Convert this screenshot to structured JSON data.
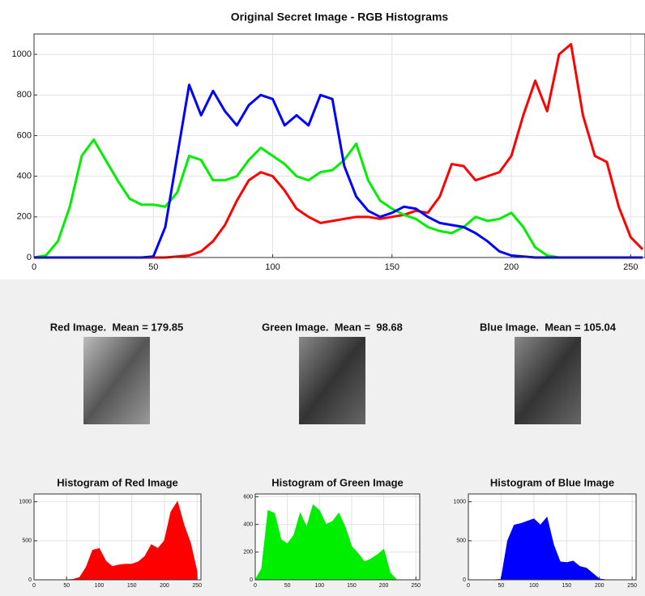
{
  "chart_data": [
    {
      "type": "line",
      "title": "Original Secret Image - RGB Histograms",
      "x": [
        0,
        5,
        10,
        15,
        20,
        25,
        30,
        35,
        40,
        45,
        50,
        55,
        60,
        65,
        70,
        75,
        80,
        85,
        90,
        95,
        100,
        105,
        110,
        115,
        120,
        125,
        130,
        135,
        140,
        145,
        150,
        155,
        160,
        165,
        170,
        175,
        180,
        185,
        190,
        195,
        200,
        205,
        210,
        215,
        220,
        225,
        230,
        235,
        240,
        245,
        250,
        255
      ],
      "series": [
        {
          "color": "#ff0000",
          "values": [
            0,
            0,
            0,
            0,
            0,
            0,
            0,
            0,
            0,
            0,
            0,
            0,
            5,
            10,
            30,
            80,
            160,
            280,
            380,
            420,
            400,
            330,
            240,
            200,
            170,
            180,
            190,
            200,
            200,
            190,
            200,
            210,
            230,
            220,
            300,
            460,
            450,
            380,
            400,
            420,
            500,
            700,
            870,
            720,
            1000,
            1050,
            700,
            500,
            470,
            250,
            100,
            40
          ]
        },
        {
          "color": "#00ee00",
          "values": [
            0,
            10,
            80,
            250,
            500,
            580,
            480,
            380,
            290,
            260,
            260,
            250,
            320,
            500,
            480,
            380,
            380,
            400,
            480,
            540,
            500,
            460,
            400,
            380,
            420,
            430,
            480,
            560,
            380,
            280,
            240,
            210,
            190,
            150,
            130,
            120,
            150,
            200,
            180,
            190,
            220,
            150,
            50,
            10,
            0,
            0,
            0,
            0,
            0,
            0,
            0,
            0
          ]
        },
        {
          "color": "#0000ff",
          "values": [
            0,
            0,
            0,
            0,
            0,
            0,
            0,
            0,
            0,
            0,
            5,
            150,
            500,
            850,
            700,
            820,
            720,
            650,
            750,
            800,
            780,
            650,
            700,
            650,
            800,
            780,
            450,
            300,
            230,
            200,
            220,
            250,
            240,
            200,
            170,
            160,
            150,
            120,
            80,
            30,
            10,
            5,
            0,
            0,
            0,
            0,
            0,
            0,
            0,
            0,
            0,
            0
          ]
        }
      ],
      "xlim": [
        0,
        256
      ],
      "xticks": [
        0,
        50,
        100,
        150,
        200,
        250
      ],
      "ylim": [
        0,
        1100
      ],
      "yticks": [
        0,
        200,
        400,
        600,
        800,
        1000
      ],
      "grid": true
    },
    {
      "type": "area",
      "title": "Histogram of Red Image",
      "color": "#ff0000",
      "x": [
        0,
        10,
        20,
        30,
        40,
        50,
        60,
        70,
        80,
        90,
        100,
        110,
        120,
        130,
        140,
        150,
        160,
        170,
        180,
        190,
        200,
        210,
        220,
        230,
        240,
        250
      ],
      "values": [
        0,
        0,
        0,
        0,
        0,
        0,
        5,
        30,
        160,
        380,
        400,
        240,
        170,
        190,
        200,
        200,
        230,
        300,
        450,
        400,
        500,
        870,
        1000,
        700,
        470,
        100
      ],
      "xlim": [
        0,
        256
      ],
      "xticks": [
        0,
        50,
        100,
        150,
        200,
        250
      ],
      "ylim": [
        0,
        1100
      ],
      "yticks": [
        0,
        500,
        1000
      ],
      "grid": true
    },
    {
      "type": "area",
      "title": "Histogram of Green Image",
      "color": "#00ee00",
      "x": [
        0,
        10,
        20,
        30,
        40,
        50,
        60,
        70,
        80,
        90,
        100,
        110,
        120,
        130,
        140,
        150,
        160,
        170,
        180,
        190,
        200,
        210,
        220,
        230,
        240,
        250
      ],
      "values": [
        0,
        80,
        500,
        480,
        290,
        260,
        320,
        480,
        380,
        540,
        500,
        400,
        420,
        480,
        380,
        240,
        190,
        130,
        150,
        180,
        220,
        50,
        0,
        0,
        0,
        0
      ],
      "xlim": [
        0,
        256
      ],
      "xticks": [
        0,
        50,
        100,
        150,
        200,
        250
      ],
      "ylim": [
        0,
        620
      ],
      "yticks": [
        0,
        200,
        400,
        600
      ],
      "grid": true
    },
    {
      "type": "area",
      "title": "Histogram of Blue Image",
      "color": "#0000ff",
      "x": [
        0,
        10,
        20,
        30,
        40,
        50,
        60,
        70,
        80,
        90,
        100,
        110,
        120,
        130,
        140,
        150,
        160,
        170,
        180,
        190,
        200,
        210,
        220,
        230,
        240,
        250
      ],
      "values": [
        0,
        0,
        0,
        0,
        0,
        5,
        500,
        700,
        720,
        750,
        780,
        700,
        800,
        450,
        230,
        220,
        240,
        170,
        150,
        80,
        10,
        0,
        0,
        0,
        0,
        0
      ],
      "xlim": [
        0,
        256
      ],
      "xticks": [
        0,
        50,
        100,
        150,
        200,
        250
      ],
      "ylim": [
        0,
        1100
      ],
      "yticks": [
        0,
        500,
        1000
      ],
      "grid": true
    }
  ],
  "images": [
    {
      "title": "Red Image.  Mean = 179.85"
    },
    {
      "title": "Green Image.  Mean =  98.68"
    },
    {
      "title": "Blue Image.  Mean = 105.04"
    }
  ]
}
